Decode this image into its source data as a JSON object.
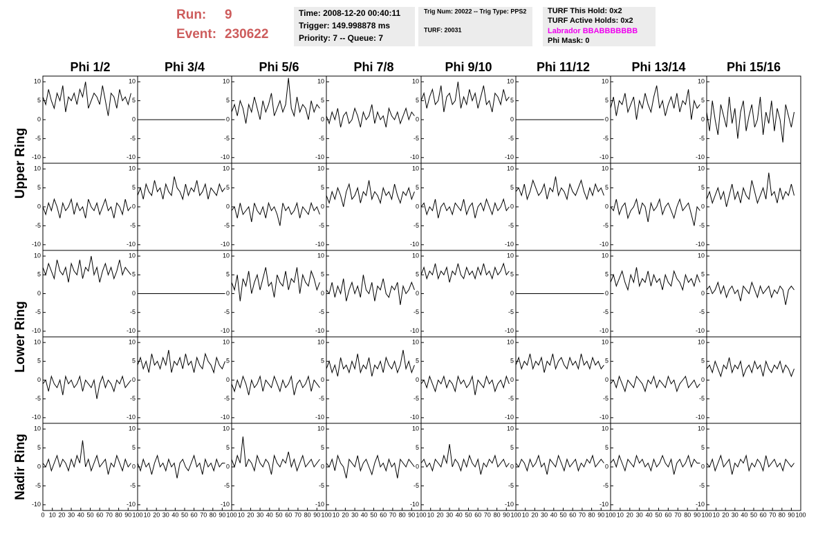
{
  "header": {
    "run_label": "Run:",
    "run": "9",
    "event_label": "Event:",
    "event": "230622",
    "time": "Time: 2008-12-20 00:40:11",
    "trigger": "Trigger: 149.998878 ms",
    "priority": "Priority: 7 -- Queue: 7",
    "trig_num": "Trig Num: 20022 -- Trig Type: PPS2",
    "turf": "TURF: 20031",
    "turf_hold": "TURF This Hold: 0x2",
    "turf_active": "TURF Active Holds: 0x2",
    "labrador": "Labrador BBABBBBBBB",
    "phi_mask": "Phi Mask: 0"
  },
  "chart_data": {
    "type": "line",
    "color": "#000000",
    "columns": [
      "Phi 1/2",
      "Phi 3/4",
      "Phi 5/6",
      "Phi 7/8",
      "Phi 9/10",
      "Phi 11/12",
      "Phi 13/14",
      "Phi 15/16"
    ],
    "row_labels": [
      "Upper Ring",
      "Lower Ring",
      "Nadir Ring"
    ],
    "xlim": [
      0,
      100
    ],
    "xticks": [
      0,
      10,
      20,
      30,
      40,
      50,
      60,
      70,
      80,
      90,
      100
    ],
    "ylim": [
      -11.5,
      11.5
    ],
    "yticks": [
      -10,
      -5,
      0,
      5,
      10
    ],
    "x": [
      0,
      3,
      6,
      9,
      12,
      15,
      18,
      21,
      24,
      27,
      30,
      33,
      36,
      39,
      42,
      45,
      48,
      51,
      54,
      57,
      60,
      63,
      66,
      69,
      72,
      75,
      78,
      81,
      84,
      87,
      90,
      93
    ],
    "panels": [
      [
        [
          6,
          4,
          8,
          5,
          3,
          7,
          5,
          9,
          2,
          6,
          5,
          7,
          4,
          8,
          6,
          10,
          3,
          5,
          7,
          6,
          4,
          9,
          5,
          1,
          7,
          6,
          3,
          8,
          5,
          6,
          4,
          7
        ],
        [
          0,
          0,
          0,
          0,
          0,
          0,
          0,
          0,
          0,
          0,
          0,
          0,
          0,
          0,
          0,
          0,
          0,
          0,
          0,
          0,
          0,
          0,
          0,
          0,
          0,
          0,
          0,
          0,
          0,
          0,
          0,
          0
        ],
        [
          2,
          4,
          1,
          5,
          3,
          -1,
          4,
          2,
          6,
          3,
          0,
          5,
          2,
          4,
          7,
          1,
          3,
          5,
          2,
          4,
          11,
          3,
          1,
          6,
          2,
          4,
          3,
          0,
          5,
          2,
          4,
          3
        ],
        [
          1,
          -1,
          2,
          0,
          3,
          -2,
          1,
          2,
          -1,
          0,
          3,
          1,
          -2,
          2,
          0,
          1,
          4,
          -1,
          2,
          0,
          1,
          -2,
          3,
          1,
          0,
          2,
          -1,
          1,
          3,
          0,
          2,
          1
        ],
        [
          5,
          7,
          3,
          6,
          8,
          4,
          5,
          9,
          2,
          6,
          7,
          4,
          5,
          10,
          3,
          6,
          4,
          8,
          5,
          7,
          3,
          6,
          9,
          4,
          5,
          2,
          7,
          6,
          4,
          8,
          5,
          6
        ],
        [
          0,
          0,
          0,
          0,
          0,
          0,
          0,
          0,
          0,
          0,
          0,
          0,
          0,
          0,
          0,
          0,
          0,
          0,
          0,
          0,
          0,
          0,
          0,
          0,
          0,
          0,
          0,
          0,
          0,
          0,
          0,
          0
        ],
        [
          3,
          6,
          1,
          5,
          4,
          7,
          2,
          4,
          6,
          0,
          5,
          3,
          7,
          4,
          2,
          6,
          9,
          3,
          5,
          1,
          4,
          6,
          3,
          7,
          2,
          5,
          4,
          8,
          0,
          5,
          3,
          4
        ],
        [
          2,
          -3,
          5,
          0,
          -4,
          4,
          1,
          -2,
          6,
          -1,
          3,
          -5,
          2,
          5,
          -3,
          1,
          4,
          -2,
          0,
          6,
          -4,
          2,
          -1,
          5,
          -3,
          3,
          0,
          -6,
          4,
          1,
          -2,
          2
        ]
      ],
      [
        [
          0,
          -2,
          1,
          -1,
          2,
          0,
          -3,
          1,
          -1,
          0,
          2,
          -2,
          1,
          -1,
          0,
          -3,
          2,
          0,
          -1,
          1,
          -2,
          0,
          2,
          -1,
          0,
          -3,
          1,
          0,
          -2,
          2,
          -1,
          0
        ],
        [
          3,
          5,
          2,
          6,
          4,
          3,
          7,
          4,
          5,
          2,
          6,
          4,
          3,
          8,
          5,
          4,
          2,
          6,
          3,
          5,
          4,
          7,
          3,
          4,
          6,
          2,
          5,
          4,
          3,
          6,
          4,
          5
        ],
        [
          -1,
          0,
          -3,
          1,
          -2,
          -1,
          0,
          -4,
          1,
          -1,
          -2,
          0,
          -3,
          1,
          -1,
          0,
          -2,
          -5,
          1,
          -1,
          0,
          -2,
          -1,
          1,
          -3,
          0,
          -1,
          -2,
          1,
          -1,
          0,
          -2
        ],
        [
          3,
          1,
          4,
          2,
          5,
          3,
          0,
          4,
          6,
          2,
          3,
          5,
          1,
          4,
          3,
          7,
          2,
          4,
          3,
          1,
          5,
          3,
          4,
          2,
          6,
          3,
          1,
          4,
          3,
          5,
          2,
          4
        ],
        [
          0,
          1,
          -2,
          0,
          -1,
          2,
          -3,
          0,
          1,
          -1,
          0,
          -2,
          1,
          0,
          -1,
          2,
          -2,
          0,
          1,
          -3,
          0,
          1,
          -1,
          2,
          0,
          -2,
          1,
          -1,
          0,
          2,
          -1,
          0
        ],
        [
          4,
          5,
          3,
          6,
          2,
          4,
          7,
          5,
          3,
          4,
          6,
          2,
          5,
          4,
          8,
          3,
          5,
          4,
          2,
          6,
          4,
          3,
          5,
          7,
          4,
          2,
          5,
          3,
          6,
          4,
          5,
          3
        ],
        [
          0,
          -1,
          2,
          -2,
          0,
          1,
          -3,
          -1,
          0,
          2,
          -2,
          1,
          0,
          -4,
          1,
          -1,
          0,
          2,
          -2,
          0,
          1,
          -1,
          -3,
          0,
          2,
          -1,
          0,
          1,
          -2,
          -5,
          0,
          -1
        ],
        [
          2,
          4,
          1,
          3,
          5,
          2,
          4,
          0,
          3,
          6,
          2,
          4,
          1,
          5,
          3,
          2,
          7,
          4,
          1,
          3,
          5,
          2,
          9,
          3,
          4,
          1,
          5,
          2,
          4,
          3,
          6,
          3
        ]
      ],
      [
        [
          7,
          5,
          8,
          6,
          4,
          9,
          6,
          5,
          7,
          3,
          8,
          6,
          5,
          9,
          4,
          7,
          6,
          10,
          5,
          7,
          3,
          6,
          8,
          5,
          7,
          4,
          6,
          9,
          5,
          7,
          6,
          5
        ],
        [
          0,
          0,
          0,
          0,
          0,
          0,
          0,
          0,
          0,
          0,
          0,
          0,
          0,
          0,
          0,
          0,
          0,
          0,
          0,
          0,
          0,
          0,
          0,
          0,
          0,
          0,
          0,
          0,
          0,
          0,
          0,
          0
        ],
        [
          3,
          1,
          5,
          -2,
          4,
          2,
          6,
          0,
          3,
          5,
          1,
          4,
          7,
          2,
          3,
          -1,
          5,
          3,
          2,
          6,
          1,
          4,
          3,
          7,
          0,
          5,
          3,
          2,
          6,
          4,
          1,
          3
        ],
        [
          1,
          0,
          3,
          -1,
          2,
          0,
          4,
          -2,
          1,
          3,
          0,
          2,
          -1,
          5,
          1,
          0,
          3,
          -2,
          2,
          1,
          4,
          0,
          -1,
          2,
          1,
          3,
          -3,
          2,
          0,
          1,
          3,
          1
        ],
        [
          5,
          7,
          4,
          6,
          5,
          8,
          4,
          6,
          5,
          7,
          3,
          6,
          5,
          8,
          5,
          4,
          7,
          5,
          6,
          4,
          7,
          5,
          8,
          5,
          6,
          4,
          7,
          5,
          6,
          8,
          5,
          6
        ],
        [
          0,
          0,
          0,
          0,
          0,
          0,
          0,
          0,
          0,
          0,
          0,
          0,
          0,
          0,
          0,
          0,
          0,
          0,
          0,
          0,
          0,
          0,
          0,
          0,
          0,
          0,
          0,
          0,
          0,
          0,
          0,
          0
        ],
        [
          3,
          5,
          2,
          4,
          6,
          3,
          1,
          5,
          3,
          7,
          2,
          4,
          3,
          6,
          2,
          5,
          3,
          4,
          1,
          5,
          3,
          2,
          6,
          4,
          3,
          1,
          5,
          3,
          4,
          2,
          5,
          3
        ],
        [
          1,
          2,
          0,
          1,
          3,
          0,
          2,
          -1,
          1,
          2,
          0,
          1,
          -2,
          2,
          1,
          0,
          3,
          1,
          -1,
          2,
          0,
          1,
          2,
          -1,
          1,
          0,
          2,
          1,
          -3,
          1,
          2,
          1
        ]
      ],
      [
        [
          -1,
          0,
          -3,
          1,
          -1,
          -2,
          0,
          -4,
          1,
          -1,
          0,
          -2,
          -1,
          1,
          -3,
          0,
          -1,
          -2,
          0,
          -5,
          -1,
          1,
          -2,
          0,
          -1,
          -3,
          0,
          -1,
          1,
          -2,
          -1,
          0
        ],
        [
          4,
          6,
          3,
          5,
          2,
          7,
          4,
          5,
          3,
          6,
          4,
          8,
          2,
          5,
          4,
          6,
          3,
          7,
          4,
          5,
          2,
          6,
          4,
          3,
          7,
          5,
          4,
          2,
          6,
          4,
          3,
          5
        ],
        [
          -1,
          -3,
          0,
          -2,
          1,
          -1,
          -4,
          0,
          -2,
          -1,
          1,
          -3,
          0,
          -1,
          -2,
          1,
          -1,
          -3,
          0,
          -2,
          -1,
          1,
          -4,
          -1,
          0,
          -2,
          -1,
          1,
          -3,
          0,
          -1,
          -2
        ],
        [
          3,
          5,
          2,
          4,
          1,
          6,
          3,
          4,
          2,
          5,
          3,
          7,
          2,
          4,
          3,
          6,
          1,
          4,
          3,
          5,
          2,
          6,
          4,
          3,
          5,
          2,
          4,
          8,
          3,
          5,
          2,
          4
        ],
        [
          -1,
          0,
          -2,
          1,
          -1,
          -3,
          0,
          -1,
          1,
          -2,
          0,
          -1,
          -3,
          1,
          -1,
          0,
          -2,
          -1,
          1,
          -4,
          0,
          -1,
          -2,
          1,
          -1,
          0,
          -3,
          -1,
          0,
          -2,
          1,
          -1
        ],
        [
          4,
          6,
          3,
          5,
          4,
          7,
          3,
          5,
          4,
          6,
          2,
          5,
          4,
          7,
          3,
          5,
          6,
          4,
          3,
          6,
          4,
          5,
          3,
          7,
          4,
          5,
          3,
          6,
          4,
          5,
          3,
          4
        ],
        [
          -1,
          0,
          -2,
          1,
          -1,
          -3,
          0,
          -1,
          -2,
          1,
          0,
          -1,
          -3,
          0,
          -1,
          1,
          -2,
          0,
          -1,
          -2,
          1,
          -1,
          0,
          -3,
          -1,
          0,
          1,
          -2,
          -1,
          0,
          -2,
          -1
        ],
        [
          3,
          4,
          2,
          5,
          3,
          1,
          4,
          3,
          6,
          2,
          4,
          3,
          5,
          1,
          3,
          4,
          2,
          5,
          3,
          4,
          1,
          5,
          3,
          2,
          4,
          3,
          5,
          2,
          4,
          3,
          1,
          3
        ]
      ],
      [
        [
          1,
          0,
          2,
          -1,
          1,
          3,
          0,
          2,
          1,
          -1,
          2,
          0,
          3,
          1,
          7,
          0,
          2,
          -1,
          1,
          3,
          0,
          1,
          2,
          -2,
          1,
          0,
          3,
          1,
          -1,
          2,
          0,
          1
        ],
        [
          1,
          -1,
          2,
          0,
          1,
          -2,
          1,
          3,
          0,
          1,
          -1,
          2,
          0,
          1,
          -3,
          1,
          2,
          0,
          -1,
          1,
          3,
          0,
          1,
          -2,
          2,
          0,
          1,
          -1,
          2,
          0,
          1,
          1
        ],
        [
          2,
          0,
          3,
          1,
          8,
          0,
          2,
          1,
          -1,
          3,
          1,
          0,
          2,
          1,
          -2,
          3,
          1,
          0,
          2,
          1,
          4,
          0,
          2,
          -1,
          1,
          3,
          0,
          1,
          2,
          0,
          1,
          2
        ],
        [
          1,
          0,
          2,
          -1,
          3,
          1,
          0,
          -3,
          2,
          1,
          0,
          3,
          -1,
          1,
          2,
          0,
          -2,
          1,
          3,
          0,
          1,
          -1,
          2,
          0,
          1,
          -3,
          2,
          1,
          0,
          2,
          1,
          0
        ],
        [
          1,
          2,
          0,
          1,
          -1,
          2,
          1,
          0,
          3,
          1,
          6,
          0,
          2,
          1,
          -1,
          2,
          0,
          3,
          1,
          0,
          2,
          -2,
          1,
          0,
          2,
          1,
          3,
          0,
          1,
          2,
          0,
          1
        ],
        [
          1,
          0,
          2,
          1,
          -1,
          2,
          0,
          1,
          3,
          0,
          1,
          -2,
          2,
          1,
          0,
          3,
          1,
          -1,
          2,
          0,
          1,
          2,
          -1,
          1,
          0,
          2,
          1,
          3,
          0,
          1,
          2,
          1
        ],
        [
          1,
          2,
          0,
          3,
          1,
          -1,
          2,
          1,
          0,
          3,
          1,
          2,
          0,
          1,
          -1,
          2,
          0,
          1,
          3,
          1,
          0,
          2,
          -2,
          1,
          2,
          0,
          1,
          3,
          0,
          2,
          1,
          1
        ],
        [
          1,
          0,
          2,
          -1,
          1,
          3,
          0,
          1,
          2,
          -2,
          1,
          0,
          2,
          1,
          3,
          -1,
          1,
          0,
          2,
          1,
          -1,
          3,
          0,
          1,
          2,
          0,
          1,
          -1,
          2,
          1,
          0,
          1
        ]
      ]
    ]
  }
}
